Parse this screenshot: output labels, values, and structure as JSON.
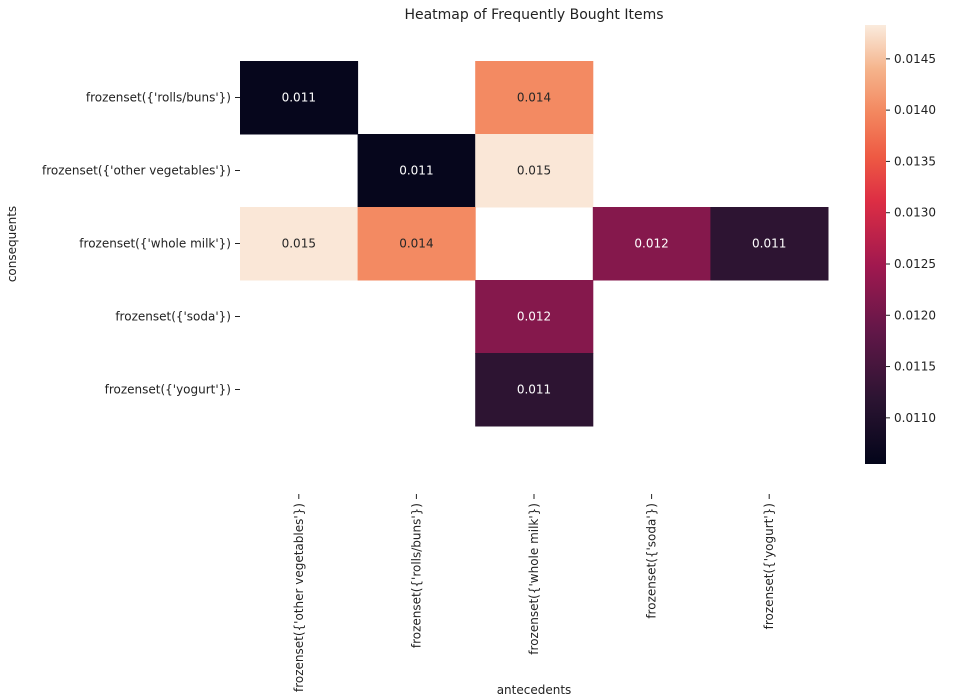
{
  "chart_data": {
    "type": "heatmap",
    "title": "Heatmap of Frequently Bought Items",
    "xlabel": "antecedents",
    "ylabel": "consequents",
    "x_categories": [
      "frozenset({'other vegetables'})",
      "frozenset({'rolls/buns'})",
      "frozenset({'whole milk'})",
      "frozenset({'soda'})",
      "frozenset({'yogurt'})"
    ],
    "y_categories": [
      "frozenset({'rolls/buns'})",
      "frozenset({'other vegetables'})",
      "frozenset({'whole milk'})",
      "frozenset({'soda'})",
      "frozenset({'yogurt'})"
    ],
    "cells": [
      {
        "x": 0,
        "y": 0,
        "value": 0.0106,
        "label": "0.011"
      },
      {
        "x": 2,
        "y": 0,
        "value": 0.014,
        "label": "0.014"
      },
      {
        "x": 1,
        "y": 1,
        "value": 0.0106,
        "label": "0.011"
      },
      {
        "x": 2,
        "y": 1,
        "value": 0.0148,
        "label": "0.015"
      },
      {
        "x": 0,
        "y": 2,
        "value": 0.0148,
        "label": "0.015"
      },
      {
        "x": 1,
        "y": 2,
        "value": 0.014,
        "label": "0.014"
      },
      {
        "x": 3,
        "y": 2,
        "value": 0.0122,
        "label": "0.012"
      },
      {
        "x": 4,
        "y": 2,
        "value": 0.0112,
        "label": "0.011"
      },
      {
        "x": 2,
        "y": 3,
        "value": 0.0122,
        "label": "0.012"
      },
      {
        "x": 2,
        "y": 4,
        "value": 0.0112,
        "label": "0.011"
      }
    ],
    "colorbar": {
      "min": 0.01055,
      "max": 0.01483,
      "ticks": [
        0.011,
        0.0115,
        0.012,
        0.0125,
        0.013,
        0.0135,
        0.014,
        0.0145
      ],
      "tick_labels": [
        "0.0110",
        "0.0115",
        "0.0120",
        "0.0125",
        "0.0130",
        "0.0135",
        "0.0140",
        "0.0145"
      ],
      "colormap": "rocket"
    }
  }
}
